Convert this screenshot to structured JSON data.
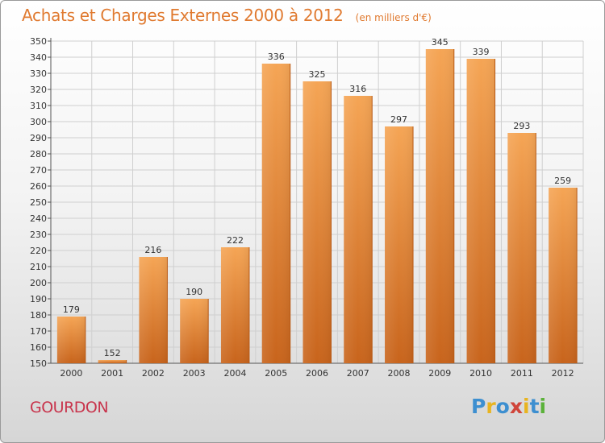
{
  "title": "Achats et Charges Externes 2000 à 2012",
  "subtitle": "(en milliers d'€)",
  "city": "GOURDON",
  "logo": {
    "text": "Proxiti",
    "letters": [
      "P",
      "r",
      "o",
      "x",
      "i",
      "t",
      "i"
    ],
    "colors": [
      "#3d8fd0",
      "#e8b420",
      "#3d8fd0",
      "#d0453a",
      "#e8b420",
      "#3d8fd0",
      "#5bb23a"
    ]
  },
  "colors": {
    "title": "#e07a30",
    "city": "#c8344c",
    "bar_top": "#f5a555",
    "bar_bottom": "#c8641c",
    "grid": "#cfcfcf"
  },
  "chart_data": {
    "type": "bar",
    "categories": [
      "2000",
      "2001",
      "2002",
      "2003",
      "2004",
      "2005",
      "2006",
      "2007",
      "2008",
      "2009",
      "2010",
      "2011",
      "2012"
    ],
    "values": [
      179,
      152,
      216,
      190,
      222,
      336,
      325,
      316,
      297,
      345,
      339,
      293,
      259
    ],
    "title": "Achats et Charges Externes 2000 à 2012",
    "xlabel": "",
    "ylabel": "",
    "ylim": [
      150,
      350
    ],
    "ytick_step": 10,
    "grid": true
  }
}
